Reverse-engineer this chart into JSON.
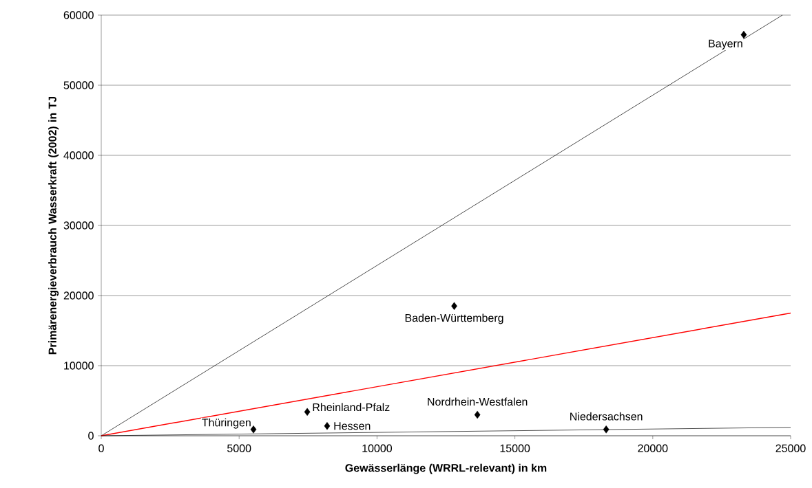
{
  "chart_data": {
    "type": "scatter",
    "xlabel": "Gewässerlänge (WRRL-relevant) in km",
    "ylabel": "Primärenergieverbrauch Wasserkraft (2002) in TJ",
    "x": [
      23300,
      12800,
      5520,
      7470,
      8190,
      13640,
      18310
    ],
    "series": [
      {
        "color": "#000000",
        "marker": "diamond",
        "values": [
          57200,
          18500,
          900,
          3400,
          1400,
          3000,
          900
        ]
      },
      {
        "type": "line",
        "color": "#000000",
        "x": [
          0,
          24700
        ],
        "values": [
          0,
          60000
        ]
      },
      {
        "type": "line",
        "color": "#ff0000",
        "x": [
          0,
          25000
        ],
        "values": [
          0,
          17500
        ]
      },
      {
        "type": "line",
        "color": "#000000",
        "x": [
          0,
          25000
        ],
        "values": [
          0,
          1200
        ]
      }
    ],
    "annotations": [
      {
        "text": "Bayern",
        "x": 23300,
        "y": 57200
      },
      {
        "text": "Baden-Württemberg",
        "x": 12800,
        "y": 18500
      },
      {
        "text": "Thüringen",
        "x": 5520,
        "y": 900
      },
      {
        "text": "Rheinland-Pfalz",
        "x": 7470,
        "y": 3400
      },
      {
        "text": "Hessen",
        "x": 8190,
        "y": 1400
      },
      {
        "text": "Nordrhein-Westfalen",
        "x": 13640,
        "y": 3000
      },
      {
        "text": "Niedersachsen",
        "x": 18310,
        "y": 900
      }
    ],
    "xlim": [
      0,
      25000
    ],
    "ylim": [
      0,
      60000
    ],
    "xticks": [
      0,
      5000,
      10000,
      15000,
      20000,
      25000
    ],
    "yticks": [
      0,
      10000,
      20000,
      30000,
      40000,
      50000,
      60000
    ],
    "grid": "y"
  }
}
